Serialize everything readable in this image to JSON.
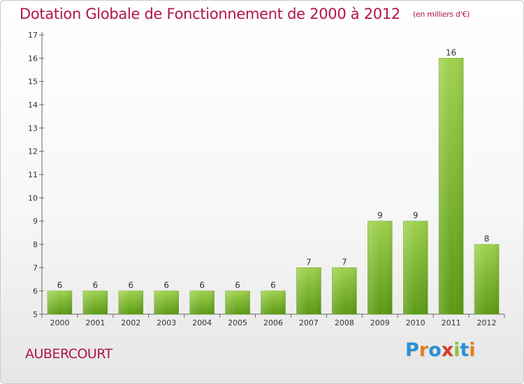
{
  "header": {
    "title": "Dotation Globale de Fonctionnement de 2000 à 2012",
    "subtitle": "(en milliers d'€)"
  },
  "commune": "AUBERCOURT",
  "logo": {
    "letters": [
      "P",
      "r",
      "o",
      "x",
      "i",
      "t",
      "i"
    ],
    "colors": [
      "#2b8fd6",
      "#e67e22",
      "#2b8fd6",
      "#d63b2b",
      "#8cc63f",
      "#2b8fd6",
      "#e67e22"
    ]
  },
  "chart_data": {
    "type": "bar",
    "title": "Dotation Globale de Fonctionnement de 2000 à 2012",
    "subtitle": "(en milliers d'€)",
    "categories": [
      "2000",
      "2001",
      "2002",
      "2003",
      "2004",
      "2005",
      "2006",
      "2007",
      "2008",
      "2009",
      "2010",
      "2011",
      "2012"
    ],
    "values": [
      6,
      6,
      6,
      6,
      6,
      6,
      6,
      7,
      7,
      9,
      9,
      16,
      8
    ],
    "value_labels": [
      "6",
      "6",
      "6",
      "6",
      "6",
      "6",
      "6",
      "7",
      "7",
      "9",
      "9",
      "16",
      "8"
    ],
    "ylim": [
      5,
      17
    ],
    "y_ticks": [
      5,
      6,
      7,
      8,
      9,
      10,
      11,
      12,
      13,
      14,
      15,
      16,
      17
    ],
    "grid": false,
    "bar_color": "#7fba2f",
    "bar_color_dark": "#5a9412"
  }
}
